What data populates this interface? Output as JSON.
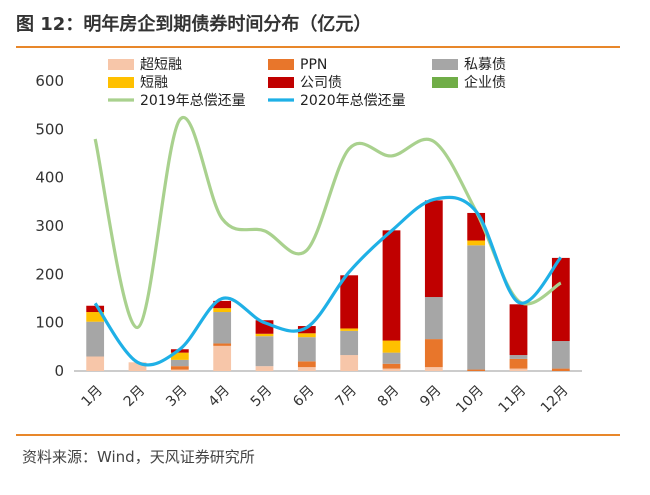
{
  "figure": {
    "title": "图 12：明年房企到期债券时间分布（亿元）",
    "source": "资料来源：Wind，天风证券研究所"
  },
  "chart_data": {
    "type": "bar",
    "stacked": true,
    "categories": [
      "1月",
      "2月",
      "3月",
      "4月",
      "5月",
      "6月",
      "7月",
      "8月",
      "9月",
      "10月",
      "11月",
      "12月"
    ],
    "ylim": [
      0,
      600
    ],
    "yticks": [
      0,
      100,
      200,
      300,
      400,
      500,
      600
    ],
    "series": [
      {
        "name": "超短融",
        "type": "bar",
        "color": "#f7c6a9",
        "values": [
          30,
          18,
          3,
          52,
          10,
          8,
          33,
          5,
          8,
          0,
          5,
          0
        ]
      },
      {
        "name": "PPN",
        "type": "bar",
        "color": "#e8762b",
        "values": [
          0,
          0,
          7,
          5,
          0,
          12,
          0,
          10,
          58,
          3,
          20,
          5
        ]
      },
      {
        "name": "私募债",
        "type": "bar",
        "color": "#a6a6a6",
        "values": [
          72,
          0,
          13,
          65,
          62,
          50,
          50,
          23,
          87,
          257,
          8,
          57
        ]
      },
      {
        "name": "短融",
        "type": "bar",
        "color": "#ffc000",
        "values": [
          20,
          0,
          15,
          8,
          5,
          8,
          5,
          25,
          0,
          10,
          0,
          0
        ]
      },
      {
        "name": "公司债",
        "type": "bar",
        "color": "#c00000",
        "values": [
          13,
          0,
          7,
          15,
          28,
          15,
          110,
          228,
          200,
          57,
          105,
          172
        ]
      },
      {
        "name": "企业债",
        "type": "bar",
        "color": "#70ad47",
        "values": [
          0,
          0,
          0,
          0,
          0,
          0,
          0,
          0,
          0,
          0,
          0,
          0
        ]
      },
      {
        "name": "2019年总偿还量",
        "type": "line",
        "color": "#a9d18e",
        "values": [
          480,
          90,
          520,
          315,
          290,
          250,
          460,
          445,
          475,
          330,
          145,
          182
        ]
      },
      {
        "name": "2020年总偿还量",
        "type": "line",
        "color": "#1fb0e6",
        "values": [
          140,
          18,
          45,
          150,
          100,
          90,
          205,
          290,
          355,
          330,
          142,
          235
        ]
      }
    ],
    "legend_rows": [
      [
        "超短融",
        "PPN",
        "私募债"
      ],
      [
        "短融",
        "公司债",
        "企业债"
      ],
      [
        "2019年总偿还量",
        "2020年总偿还量"
      ]
    ],
    "legend_position": "top",
    "grid": false
  }
}
